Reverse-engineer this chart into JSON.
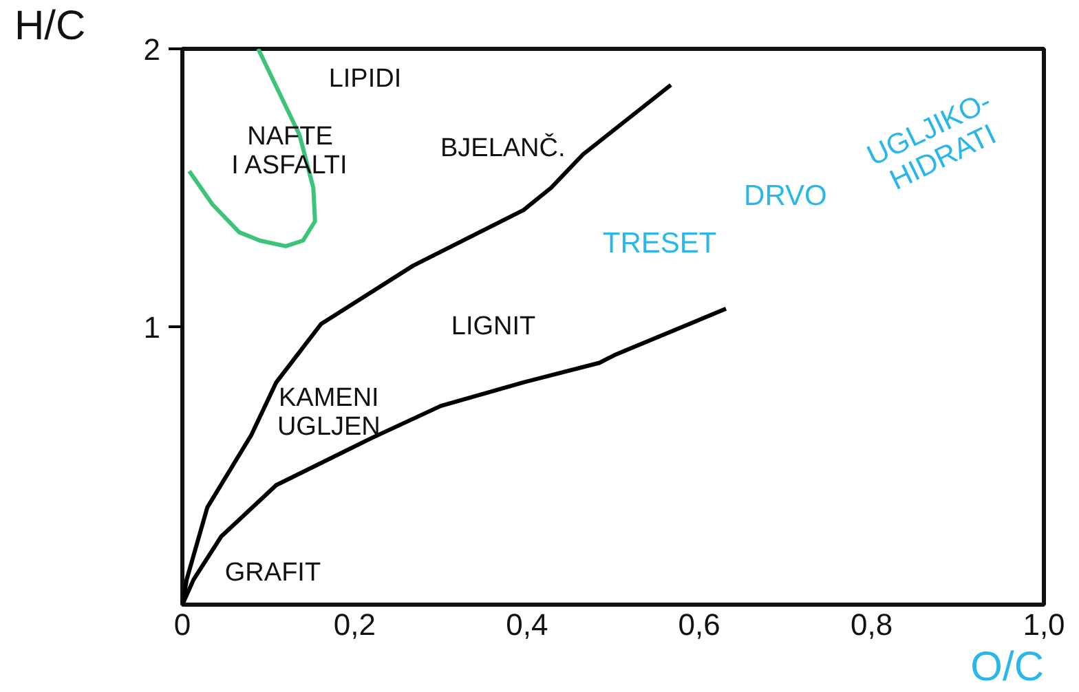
{
  "chart_data": {
    "type": "line",
    "xlabel": "O/C",
    "ylabel": "H/C",
    "xlim": [
      0,
      1.0
    ],
    "ylim": [
      0,
      2
    ],
    "xticks": [
      0,
      {
        "value": 0.2,
        "label": "0,2"
      },
      {
        "value": 0.4,
        "label": "0,4"
      },
      {
        "value": 0.6,
        "label": "0,6"
      },
      {
        "value": 0.8,
        "label": "0,8"
      },
      {
        "value": 1.0,
        "label": "1,0"
      }
    ],
    "yticks": [
      1,
      2
    ],
    "grid": false,
    "marker": "none",
    "line_style": "solid",
    "series": [
      {
        "color": "#000000",
        "x": [
          0,
          0.005,
          0.029,
          0.08,
          0.109,
          0.161,
          0.268,
          0.396,
          0.428,
          0.465,
          0.567
        ],
        "values": [
          0,
          0.09,
          0.35,
          0.61,
          0.8,
          1.01,
          1.22,
          1.42,
          1.5,
          1.62,
          1.87
        ]
      },
      {
        "color": "#000000",
        "x": [
          0,
          0.013,
          0.045,
          0.109,
          0.22,
          0.3,
          0.396,
          0.484,
          0.503,
          0.631
        ],
        "values": [
          0,
          0.09,
          0.245,
          0.43,
          0.6,
          0.715,
          0.8,
          0.87,
          0.9,
          1.065
        ]
      },
      {
        "color": "#3cc47a",
        "x": [
          0.088,
          0.136,
          0.152,
          0.154,
          0.14,
          0.12,
          0.09,
          0.066,
          0.035,
          0.008
        ],
        "values": [
          2.0,
          1.69,
          1.5,
          1.38,
          1.31,
          1.29,
          1.31,
          1.34,
          1.44,
          1.56
        ]
      }
    ],
    "annotations": [
      "LIPIDI",
      "NAFTE\nI ASFALTI",
      "BJELANČ.",
      "LIGNIT",
      "KAMENI\nUGLJEN",
      "GRAFIT",
      "TRESET",
      "DRVO",
      "UGLJIKO-\nHIDRATI"
    ]
  }
}
